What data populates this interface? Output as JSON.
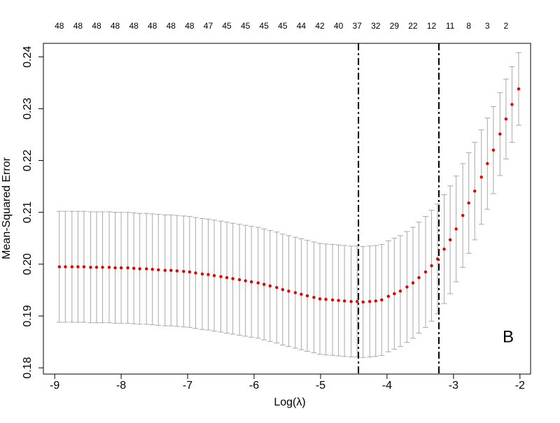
{
  "chart_data": {
    "type": "cv-errorbar",
    "xlabel": "Log(λ)",
    "ylabel": "Mean-Squared Error",
    "annotation": "B",
    "x": [
      -8.93,
      -8.84,
      -8.74,
      -8.65,
      -8.56,
      -8.46,
      -8.37,
      -8.28,
      -8.18,
      -8.09,
      -8.0,
      -7.9,
      -7.81,
      -7.72,
      -7.62,
      -7.53,
      -7.44,
      -7.34,
      -7.25,
      -7.16,
      -7.06,
      -6.97,
      -6.88,
      -6.78,
      -6.69,
      -6.6,
      -6.5,
      -6.41,
      -6.32,
      -6.22,
      -6.13,
      -6.04,
      -5.94,
      -5.85,
      -5.76,
      -5.66,
      -5.57,
      -5.48,
      -5.38,
      -5.29,
      -5.2,
      -5.1,
      -5.01,
      -4.92,
      -4.82,
      -4.73,
      -4.64,
      -4.54,
      -4.45,
      -4.36,
      -4.26,
      -4.17,
      -4.08,
      -3.98,
      -3.89,
      -3.8,
      -3.7,
      -3.61,
      -3.52,
      -3.42,
      -3.33,
      -3.24,
      -3.14,
      -3.05,
      -2.96,
      -2.86,
      -2.77,
      -2.68,
      -2.58,
      -2.49,
      -2.4,
      -2.3,
      -2.21,
      -2.12,
      -2.02
    ],
    "values": [
      0.1995,
      0.1995,
      0.1995,
      0.1995,
      0.1995,
      0.1994,
      0.1994,
      0.1994,
      0.1994,
      0.1993,
      0.1993,
      0.1993,
      0.1992,
      0.1991,
      0.1991,
      0.199,
      0.1989,
      0.1988,
      0.1988,
      0.1987,
      0.1986,
      0.1985,
      0.1983,
      0.1981,
      0.198,
      0.1978,
      0.1976,
      0.1974,
      0.1972,
      0.197,
      0.1968,
      0.1966,
      0.1964,
      0.1961,
      0.1958,
      0.1955,
      0.1951,
      0.1948,
      0.1945,
      0.1942,
      0.1939,
      0.1936,
      0.1933,
      0.1932,
      0.1931,
      0.193,
      0.1929,
      0.1928,
      0.1928,
      0.1927,
      0.1928,
      0.1929,
      0.1931,
      0.1938,
      0.1943,
      0.1948,
      0.1956,
      0.1964,
      0.1974,
      0.1985,
      0.1997,
      0.201,
      0.2029,
      0.2047,
      0.2068,
      0.2094,
      0.2118,
      0.2141,
      0.2168,
      0.2194,
      0.222,
      0.2251,
      0.228,
      0.2308,
      0.2338
    ],
    "errors": [
      0.0107,
      0.0107,
      0.0107,
      0.0107,
      0.0107,
      0.0107,
      0.0107,
      0.0107,
      0.0107,
      0.0107,
      0.0107,
      0.0107,
      0.0107,
      0.0107,
      0.0107,
      0.0107,
      0.0107,
      0.0107,
      0.0107,
      0.0107,
      0.0107,
      0.0107,
      0.0107,
      0.0107,
      0.0107,
      0.0107,
      0.0107,
      0.0107,
      0.0107,
      0.0107,
      0.0107,
      0.0107,
      0.0107,
      0.0107,
      0.0107,
      0.0107,
      0.0107,
      0.0107,
      0.0107,
      0.0107,
      0.0107,
      0.0107,
      0.0107,
      0.0107,
      0.0107,
      0.0107,
      0.0107,
      0.0107,
      0.0107,
      0.0107,
      0.0107,
      0.0107,
      0.0107,
      0.0107,
      0.0107,
      0.0107,
      0.0107,
      0.0107,
      0.0107,
      0.0107,
      0.0107,
      0.0106,
      0.0105,
      0.0104,
      0.0102,
      0.01,
      0.0097,
      0.0094,
      0.0091,
      0.0088,
      0.0084,
      0.008,
      0.0077,
      0.0073,
      0.007
    ],
    "color": "#e00000",
    "error_color": "#a8a8a8",
    "vlines": [
      -4.43,
      -3.22
    ],
    "xlim": [
      -9.17,
      -1.84
    ],
    "ylim": [
      0.1788,
      0.2426
    ],
    "xticks": [
      -9,
      -8,
      -7,
      -6,
      -5,
      -4,
      -3,
      -2
    ],
    "yticks": [
      {
        "value": 0.18,
        "label": "0.18"
      },
      {
        "value": 0.19,
        "label": "0.19"
      },
      {
        "value": 0.2,
        "label": "0.20"
      },
      {
        "value": 0.21,
        "label": "0.21"
      },
      {
        "value": 0.22,
        "label": "0.22"
      },
      {
        "value": 0.23,
        "label": "0.23"
      },
      {
        "value": 0.24,
        "label": "0.24"
      }
    ],
    "top_ticks": [
      {
        "value": -8.93,
        "label": "48"
      },
      {
        "value": -8.65,
        "label": "48"
      },
      {
        "value": -8.37,
        "label": "48"
      },
      {
        "value": -8.09,
        "label": "48"
      },
      {
        "value": -7.81,
        "label": "48"
      },
      {
        "value": -7.53,
        "label": "48"
      },
      {
        "value": -7.25,
        "label": "48"
      },
      {
        "value": -6.97,
        "label": "48"
      },
      {
        "value": -6.69,
        "label": "47"
      },
      {
        "value": -6.41,
        "label": "45"
      },
      {
        "value": -6.13,
        "label": "45"
      },
      {
        "value": -5.85,
        "label": "45"
      },
      {
        "value": -5.57,
        "label": "45"
      },
      {
        "value": -5.29,
        "label": "44"
      },
      {
        "value": -5.01,
        "label": "42"
      },
      {
        "value": -4.73,
        "label": "40"
      },
      {
        "value": -4.45,
        "label": "37"
      },
      {
        "value": -4.17,
        "label": "32"
      },
      {
        "value": -3.89,
        "label": "29"
      },
      {
        "value": -3.61,
        "label": "22"
      },
      {
        "value": -3.33,
        "label": "12"
      },
      {
        "value": -3.05,
        "label": "11"
      },
      {
        "value": -2.77,
        "label": "8"
      },
      {
        "value": -2.49,
        "label": "3"
      },
      {
        "value": -2.21,
        "label": "2"
      }
    ]
  }
}
